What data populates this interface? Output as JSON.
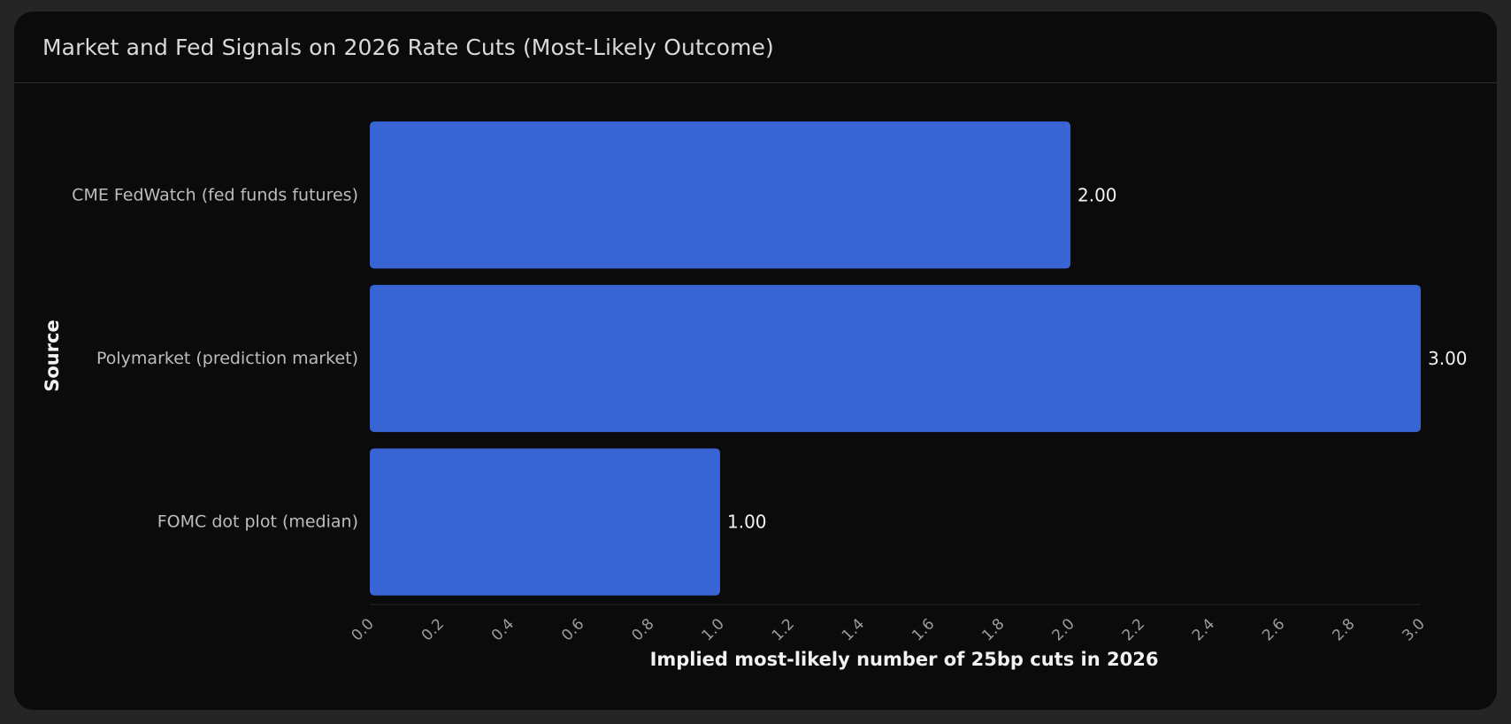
{
  "card": {
    "title": "Market and Fed Signals on 2026 Rate Cuts (Most-Likely Outcome)"
  },
  "chart_data": {
    "type": "bar",
    "orientation": "horizontal",
    "title": "Market and Fed Signals on 2026 Rate Cuts (Most-Likely Outcome)",
    "xlabel": "Implied most-likely number of 25bp cuts in 2026",
    "ylabel": "Source",
    "categories": [
      "CME FedWatch (fed funds futures)",
      "Polymarket (prediction market)",
      "FOMC dot plot (median)"
    ],
    "values": [
      2,
      3,
      1
    ],
    "value_labels": [
      "2.00",
      "3.00",
      "1.00"
    ],
    "xlim": [
      0,
      3
    ],
    "xticks": [
      "0.0",
      "0.2",
      "0.4",
      "0.6",
      "0.8",
      "1.0",
      "1.2",
      "1.4",
      "1.6",
      "1.8",
      "2.0",
      "2.2",
      "2.4",
      "2.6",
      "2.8",
      "3.0"
    ],
    "grid": false,
    "legend": "none",
    "bar_color": "#3864d4"
  }
}
